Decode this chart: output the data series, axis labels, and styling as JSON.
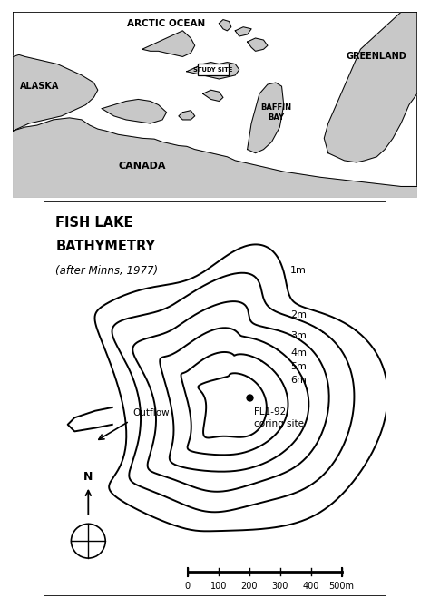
{
  "title_arctic": "ARCTIC OCEAN",
  "title_greenland": "GREENLAND",
  "title_alaska": "ALASKA",
  "title_canada": "CANADA",
  "title_baffin": "BAFFIN\nBAY",
  "study_site_label": "STUDY SITE",
  "bathy_title1": "FISH LAKE",
  "bathy_title2": "BATHYMETRY",
  "bathy_subtitle": "(after Minns, 1977)",
  "depth_labels": [
    "1m",
    "2m",
    "3m",
    "4m",
    "5m",
    "6m"
  ],
  "coring_label": "FL1-92\ncoring site",
  "outflow_label": "Outflow",
  "north_label": "N",
  "scale_labels": [
    "0",
    "100",
    "200",
    "300",
    "400",
    "500m"
  ],
  "bg_color": "#ffffff",
  "land_color": "#c8c8c8",
  "line_color": "#000000"
}
